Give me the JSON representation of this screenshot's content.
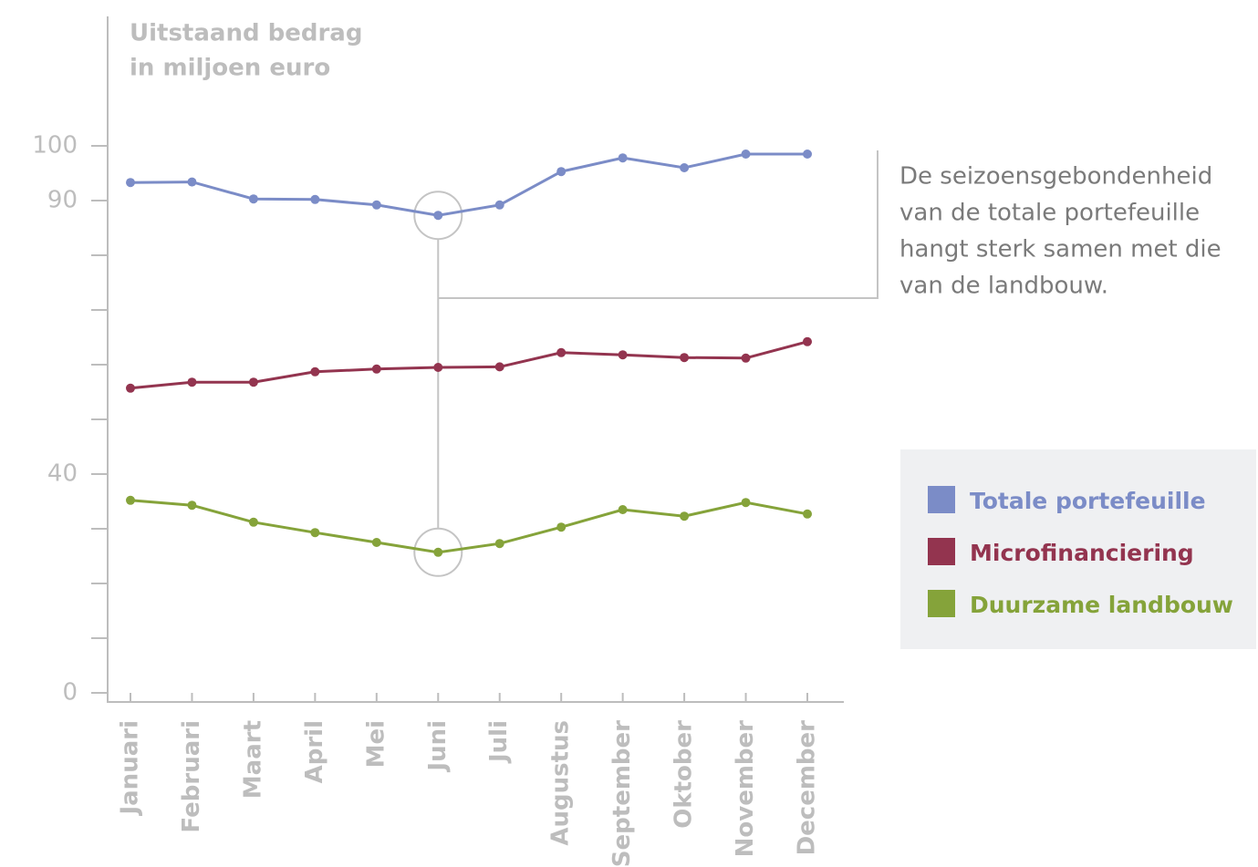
{
  "chart_data": {
    "type": "line",
    "y_axis_label": [
      "Uitstaand bedrag",
      "in miljoen euro"
    ],
    "annotation": [
      "De seizoensgebondenheid",
      "van de totale portefeuille",
      "hangt sterk samen met die",
      "van de landbouw."
    ],
    "categories": [
      "Januari",
      "Februari",
      "Maart",
      "April",
      "Mei",
      "Juni",
      "Juli",
      "Augustus",
      "September",
      "Oktober",
      "November",
      "December"
    ],
    "series": [
      {
        "name": "Totale portefeuille",
        "color": "#7b8cc7",
        "values": [
          93.3,
          93.4,
          90.3,
          90.2,
          89.2,
          87.3,
          89.2,
          95.3,
          97.8,
          96.0,
          98.5,
          98.5
        ]
      },
      {
        "name": "Microfinanciering",
        "color": "#93344f",
        "values": [
          55.7,
          56.8,
          56.8,
          58.7,
          59.2,
          59.5,
          59.6,
          62.2,
          61.8,
          61.3,
          61.2,
          64.2
        ]
      },
      {
        "name": "Duurzame landbouw",
        "color": "#85a33a",
        "values": [
          35.2,
          34.3,
          31.2,
          29.3,
          27.5,
          25.7,
          27.3,
          30.3,
          33.5,
          32.3,
          34.8,
          32.7
        ]
      }
    ],
    "ylim": [
      0,
      100
    ],
    "yticks": [
      0,
      40,
      90,
      100
    ],
    "minor_yticks": [
      10,
      20,
      30,
      50,
      60,
      70,
      80
    ]
  }
}
